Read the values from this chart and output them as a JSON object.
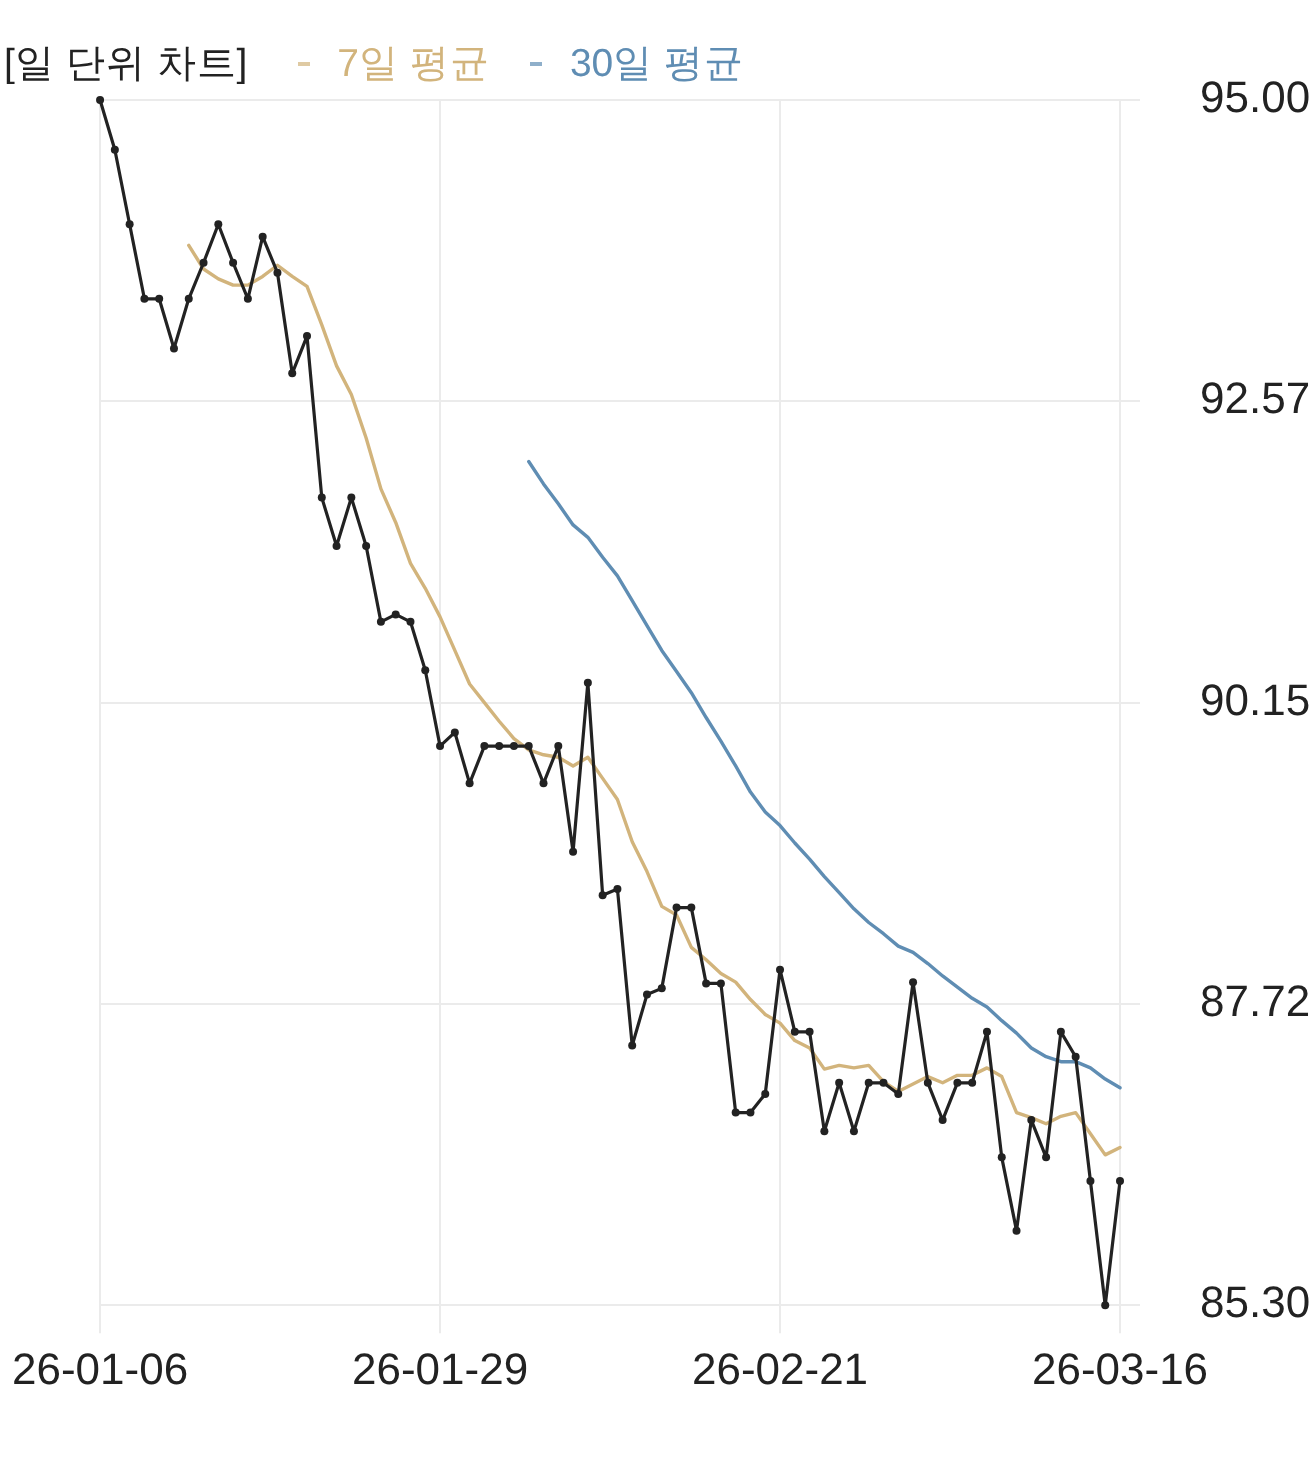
{
  "chart_data": {
    "type": "line",
    "title": "[일 단위 차트]",
    "x": [
      "--01-06",
      "--01-07",
      "--01-08",
      "--01-09",
      "--01-10",
      "--01-11",
      "--01-12",
      "--01-13",
      "--01-14",
      "--01-15",
      "--01-16",
      "--01-17",
      "--01-18",
      "--01-19",
      "--01-20",
      "--01-21",
      "--01-22",
      "--01-23",
      "--01-24",
      "--01-25",
      "--01-26",
      "--01-27",
      "--01-28",
      "--01-29",
      "--01-30",
      "--01-31",
      "--02-01",
      "--02-02",
      "--02-03",
      "--02-04",
      "--02-05",
      "--02-06",
      "--02-07",
      "--02-08",
      "--02-09",
      "--02-10",
      "--02-11",
      "--02-12",
      "--02-13",
      "--02-14",
      "--02-15",
      "--02-16",
      "--02-17",
      "--02-18",
      "--02-19",
      "--02-20",
      "--02-21",
      "--02-22",
      "--02-23",
      "--02-24",
      "--02-25",
      "--02-26",
      "--02-27",
      "--02-28",
      "--03-01",
      "--03-02",
      "--03-03",
      "--03-04",
      "--03-05",
      "--03-06",
      "--03-07",
      "--03-08",
      "--03-09",
      "--03-10",
      "--03-11",
      "--03-12",
      "--03-13",
      "--03-14",
      "--03-15",
      "--03-16"
    ],
    "series": [
      {
        "color": "#222222",
        "marker": "circle",
        "values": [
          95,
          94.6,
          94,
          93.4,
          93.4,
          93,
          93.4,
          93.69,
          94,
          93.69,
          93.4,
          93.9,
          93.61,
          92.8,
          93.1,
          91.8,
          91.41,
          91.8,
          91.41,
          90.8,
          90.86,
          90.8,
          90.41,
          89.8,
          89.91,
          89.5,
          89.8,
          89.8,
          89.8,
          89.8,
          89.5,
          89.8,
          88.95,
          90.31,
          88.6,
          88.65,
          87.39,
          87.8,
          87.85,
          88.5,
          88.5,
          87.89,
          87.89,
          86.85,
          86.85,
          87,
          88,
          87.5,
          87.5,
          86.7,
          87.09,
          86.7,
          87.09,
          87.09,
          87,
          87.9,
          87.09,
          86.79,
          87.09,
          87.09,
          87.5,
          86.49,
          85.9,
          86.79,
          86.49,
          87.5,
          87.3,
          86.3,
          85.3,
          86.3
        ]
      },
      {
        "name": "7일 평균",
        "color": "#d2b47c",
        "values": [
          null,
          null,
          null,
          null,
          null,
          null,
          93.83,
          93.64,
          93.56,
          93.51,
          93.51,
          93.58,
          93.67,
          93.58,
          93.5,
          93.19,
          92.86,
          92.63,
          92.28,
          91.87,
          91.6,
          91.27,
          91.07,
          90.84,
          90.57,
          90.3,
          90.15,
          90,
          89.86,
          89.77,
          89.73,
          89.71,
          89.64,
          89.71,
          89.54,
          89.37,
          89.03,
          88.79,
          88.51,
          88.44,
          88.18,
          88.08,
          87.97,
          87.9,
          87.76,
          87.64,
          87.57,
          87.43,
          87.37,
          87.2,
          87.23,
          87.21,
          87.23,
          87.1,
          87.02,
          87.08,
          87.14,
          87.09,
          87.15,
          87.15,
          87.21,
          87.14,
          86.85,
          86.81,
          86.76,
          86.82,
          86.85,
          86.68,
          86.51,
          86.57
        ]
      },
      {
        "name": "30일 평균",
        "color": "#5f8db3",
        "values": [
          null,
          null,
          null,
          null,
          null,
          null,
          null,
          null,
          null,
          null,
          null,
          null,
          null,
          null,
          null,
          null,
          null,
          null,
          null,
          null,
          null,
          null,
          null,
          null,
          null,
          null,
          null,
          null,
          null,
          92.09,
          91.91,
          91.75,
          91.58,
          91.48,
          91.32,
          91.17,
          90.97,
          90.77,
          90.57,
          90.4,
          90.23,
          90.03,
          89.84,
          89.64,
          89.43,
          89.27,
          89.16,
          89.02,
          88.89,
          88.75,
          88.62,
          88.49,
          88.38,
          88.29,
          88.19,
          88.14,
          88.05,
          87.95,
          87.86,
          87.77,
          87.7,
          87.59,
          87.49,
          87.37,
          87.3,
          87.26,
          87.26,
          87.21,
          87.12,
          87.05
        ]
      }
    ],
    "xlim": [
      "--01-06",
      "--03-16"
    ],
    "xticks": [
      {
        "value": "--01-06",
        "label": "26-01-06"
      },
      {
        "value": "--01-29",
        "label": "26-01-29"
      },
      {
        "value": "--02-21",
        "label": "26-02-21"
      },
      {
        "value": "--03-16",
        "label": "26-03-16"
      }
    ],
    "ylim": [
      85.3,
      95
    ],
    "yticks": [
      {
        "value": 85.3,
        "label": "85.30"
      },
      {
        "value": 87.725,
        "label": "87.72"
      },
      90.15,
      {
        "value": 92.575,
        "label": "92.57"
      },
      {
        "value": 95,
        "label": "95.00"
      }
    ],
    "grid": true,
    "legend": "top left"
  }
}
